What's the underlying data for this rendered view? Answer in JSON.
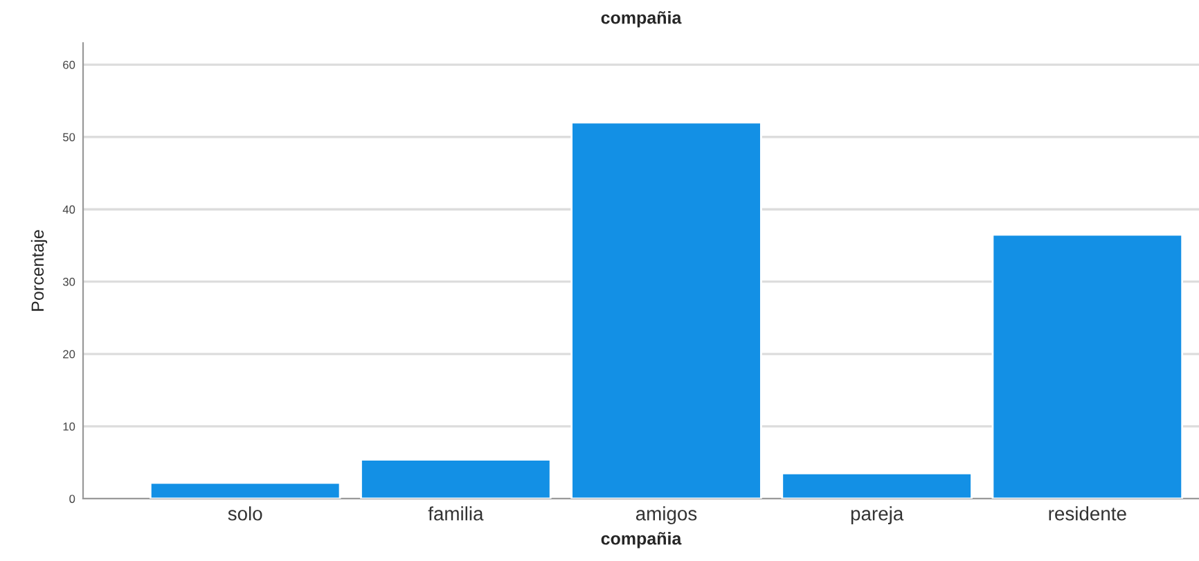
{
  "chart_data": {
    "type": "bar",
    "title": "compañia",
    "xlabel": "compañia",
    "ylabel": "Porcentaje",
    "categories": [
      "solo",
      "familia",
      "amigos",
      "pareja",
      "residente"
    ],
    "values": [
      2.2,
      5.4,
      52.0,
      3.5,
      36.5
    ],
    "color": "#1390e5",
    "ylim": [
      0,
      63
    ],
    "yticks": [
      0,
      10,
      20,
      30,
      40,
      50,
      60
    ],
    "grid": "y",
    "legend": false
  }
}
